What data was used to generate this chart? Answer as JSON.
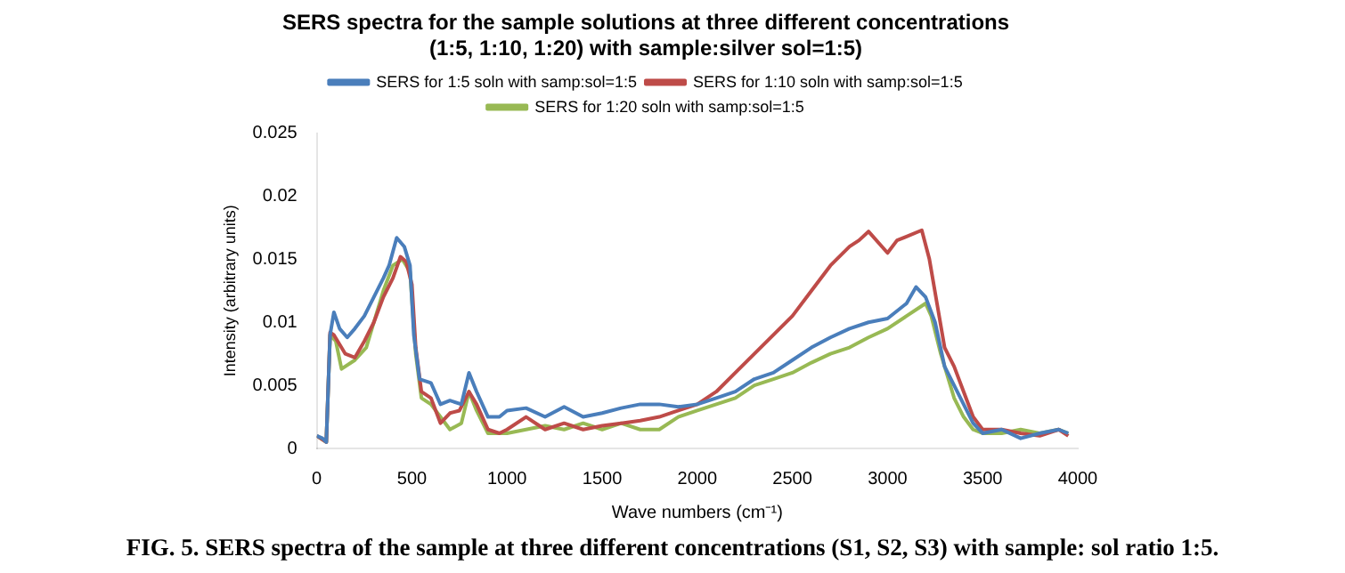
{
  "chart_data": {
    "type": "line",
    "title": "SERS spectra for the sample solutions at three different concentrations\n(1:5, 1:10, 1:20) with sample:silver sol=1:5)",
    "xlabel": "Wave numbers (cm⁻¹)",
    "ylabel": "Intensity (arbitrary units)",
    "xlim": [
      0,
      4000
    ],
    "xticks": [
      0,
      500,
      1000,
      1500,
      2000,
      2500,
      3000,
      3500,
      4000
    ],
    "ylim": [
      0,
      0.025
    ],
    "yticks": [
      0,
      0.005,
      0.01,
      0.015,
      0.02,
      0.025
    ],
    "legend": "top",
    "marker": "none",
    "line_style": "solid",
    "annotations": [
      "FIG. 5. SERS spectra of the sample at three different concentrations (S1, S2, S3) with sample: sol ratio 1:5."
    ],
    "series": [
      {
        "name": "SERS for 1:5 soln with samp:sol=1:5",
        "color": "#4a7ebb",
        "x": [
          0,
          30,
          50,
          70,
          90,
          120,
          160,
          200,
          250,
          300,
          350,
          380,
          420,
          460,
          490,
          510,
          540,
          600,
          650,
          700,
          760,
          800,
          840,
          900,
          960,
          1000,
          1100,
          1200,
          1300,
          1400,
          1500,
          1600,
          1700,
          1800,
          1900,
          2000,
          2100,
          2200,
          2300,
          2400,
          2500,
          2600,
          2700,
          2800,
          2900,
          3000,
          3100,
          3150,
          3200,
          3250,
          3300,
          3350,
          3400,
          3450,
          3500,
          3600,
          3700,
          3800,
          3900,
          3950
        ],
        "values": [
          0.001,
          0.0008,
          0.0005,
          0.009,
          0.0108,
          0.0095,
          0.0088,
          0.0095,
          0.0105,
          0.012,
          0.0135,
          0.0145,
          0.0167,
          0.016,
          0.0145,
          0.009,
          0.0055,
          0.0052,
          0.0035,
          0.0038,
          0.0035,
          0.006,
          0.0045,
          0.0025,
          0.0025,
          0.003,
          0.0032,
          0.0025,
          0.0033,
          0.0025,
          0.0028,
          0.0032,
          0.0035,
          0.0035,
          0.0033,
          0.0035,
          0.004,
          0.0045,
          0.0055,
          0.006,
          0.007,
          0.008,
          0.0088,
          0.0095,
          0.01,
          0.0103,
          0.0115,
          0.0128,
          0.012,
          0.01,
          0.0065,
          0.005,
          0.0035,
          0.002,
          0.0012,
          0.0015,
          0.0008,
          0.0012,
          0.0015,
          0.0012
        ]
      },
      {
        "name": "SERS for 1:10 soln with samp:sol=1:5",
        "color": "#be4b48",
        "x": [
          0,
          50,
          70,
          90,
          150,
          200,
          250,
          300,
          350,
          400,
          440,
          470,
          500,
          520,
          550,
          600,
          650,
          700,
          750,
          800,
          840,
          900,
          960,
          1000,
          1100,
          1200,
          1300,
          1400,
          1500,
          1600,
          1700,
          1800,
          1900,
          2000,
          2100,
          2200,
          2300,
          2400,
          2500,
          2600,
          2700,
          2800,
          2850,
          2900,
          3000,
          3050,
          3100,
          3180,
          3220,
          3260,
          3300,
          3350,
          3400,
          3450,
          3500,
          3600,
          3700,
          3800,
          3900,
          3950
        ],
        "values": [
          0.001,
          0.0005,
          0.0092,
          0.009,
          0.0075,
          0.0072,
          0.0085,
          0.01,
          0.012,
          0.0135,
          0.0152,
          0.0148,
          0.013,
          0.008,
          0.0045,
          0.004,
          0.002,
          0.0028,
          0.003,
          0.0045,
          0.0035,
          0.0015,
          0.0012,
          0.0015,
          0.0025,
          0.0015,
          0.002,
          0.0015,
          0.0018,
          0.002,
          0.0022,
          0.0025,
          0.003,
          0.0035,
          0.0045,
          0.006,
          0.0075,
          0.009,
          0.0105,
          0.0125,
          0.0145,
          0.016,
          0.0165,
          0.0172,
          0.0155,
          0.0165,
          0.0168,
          0.0173,
          0.015,
          0.0115,
          0.008,
          0.0065,
          0.0045,
          0.0025,
          0.0015,
          0.0015,
          0.0012,
          0.001,
          0.0015,
          0.001
        ]
      },
      {
        "name": "SERS for 1:20 soln with samp:sol=1:5",
        "color": "#98b954",
        "x": [
          0,
          50,
          70,
          100,
          130,
          200,
          260,
          300,
          350,
          400,
          450,
          490,
          520,
          550,
          600,
          650,
          700,
          760,
          800,
          840,
          900,
          1000,
          1100,
          1200,
          1300,
          1400,
          1500,
          1600,
          1700,
          1800,
          1900,
          2000,
          2100,
          2200,
          2300,
          2400,
          2500,
          2600,
          2700,
          2800,
          2900,
          3000,
          3100,
          3200,
          3230,
          3280,
          3350,
          3400,
          3450,
          3500,
          3600,
          3700,
          3800,
          3900,
          3950
        ],
        "values": [
          0.001,
          0.0005,
          0.009,
          0.0085,
          0.0063,
          0.007,
          0.008,
          0.01,
          0.0125,
          0.0145,
          0.015,
          0.014,
          0.0075,
          0.004,
          0.0035,
          0.0025,
          0.0015,
          0.002,
          0.0045,
          0.003,
          0.0012,
          0.0012,
          0.0015,
          0.0018,
          0.0015,
          0.002,
          0.0015,
          0.002,
          0.0015,
          0.0015,
          0.0025,
          0.003,
          0.0035,
          0.004,
          0.005,
          0.0055,
          0.006,
          0.0068,
          0.0075,
          0.008,
          0.0088,
          0.0095,
          0.0105,
          0.0115,
          0.0105,
          0.0075,
          0.004,
          0.0025,
          0.0015,
          0.0012,
          0.0012,
          0.0015,
          0.0012,
          0.0015,
          0.0012
        ]
      }
    ]
  }
}
